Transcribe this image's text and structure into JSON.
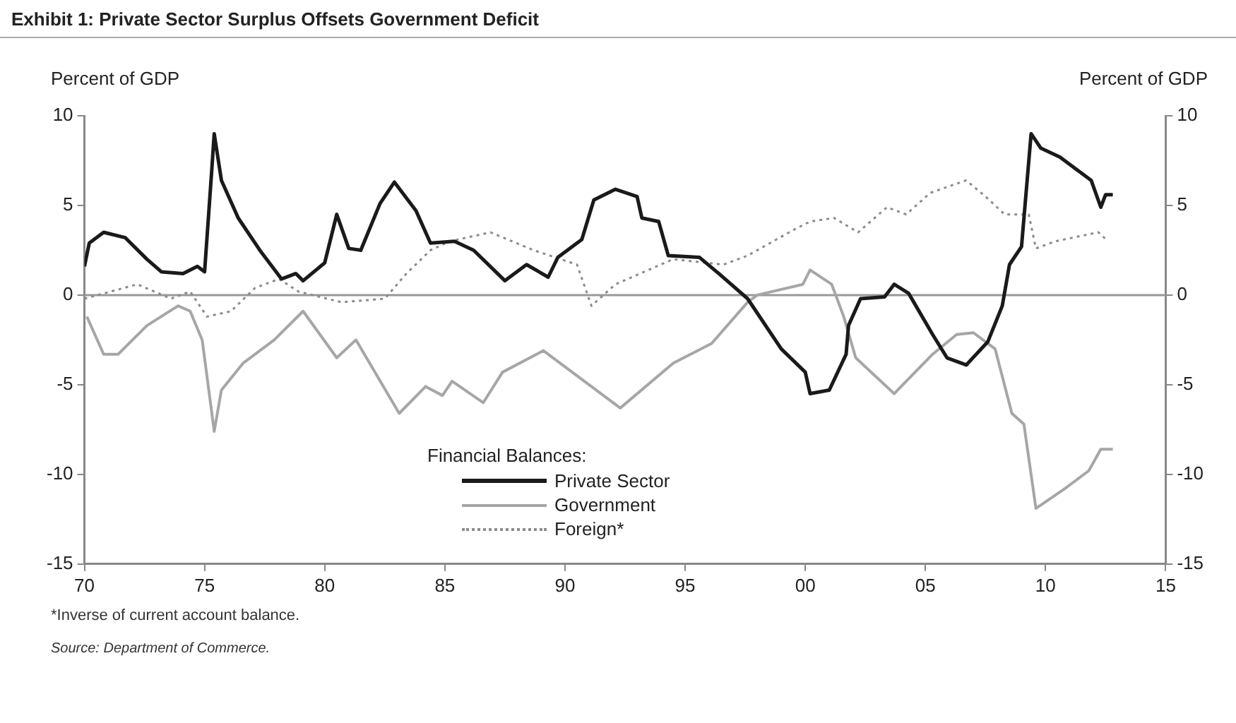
{
  "chart_data": {
    "type": "line",
    "title": "Exhibit 1: Private Sector Surplus Offsets Government Deficit",
    "ylabel": "Percent of GDP",
    "y2label": "Percent of GDP",
    "legend_title": "Financial Balances:",
    "legend": "bottom",
    "grid": false,
    "marker": "none",
    "xlim": [
      1970,
      2015
    ],
    "xticks": [
      {
        "value": 1970,
        "label": "70"
      },
      {
        "value": 1975,
        "label": "75"
      },
      {
        "value": 1980,
        "label": "80"
      },
      {
        "value": 1985,
        "label": "85"
      },
      {
        "value": 1990,
        "label": "90"
      },
      {
        "value": 1995,
        "label": "95"
      },
      {
        "value": 2000,
        "label": "00"
      },
      {
        "value": 2005,
        "label": "05"
      },
      {
        "value": 2010,
        "label": "10"
      },
      {
        "value": 2015,
        "label": "15"
      }
    ],
    "ylim": [
      -15,
      10
    ],
    "yticks": [
      -15,
      -10,
      -5,
      0,
      5,
      10
    ],
    "y2lim": [
      -15,
      10
    ],
    "y2ticks": [
      -15,
      -10,
      -5,
      0,
      5,
      10
    ],
    "ref_lines": [
      {
        "axis": "y",
        "value": 0,
        "color": "#999999"
      }
    ],
    "annotations": [
      "*Inverse of current account balance.",
      "Source: Department of Commerce."
    ],
    "series": [
      {
        "name": "Private Sector",
        "color": "#1a1a1a",
        "line_style": "solid",
        "x": [
          1970.0,
          1970.2,
          1970.8,
          1971.7,
          1972.6,
          1973.2,
          1974.1,
          1974.7,
          1975.0,
          1975.3,
          1975.4,
          1975.7,
          1976.4,
          1977.3,
          1978.2,
          1978.8,
          1979.1,
          1980.0,
          1980.5,
          1981.0,
          1981.5,
          1982.3,
          1982.9,
          1983.8,
          1984.4,
          1985.4,
          1986.2,
          1987.5,
          1988.4,
          1989.3,
          1989.7,
          1990.7,
          1991.2,
          1992.1,
          1993.0,
          1993.2,
          1993.9,
          1994.3,
          1995.6,
          1996.4,
          1997.6,
          1999.0,
          2000.0,
          2000.2,
          2001.0,
          2001.7,
          2001.8,
          2002.3,
          2003.3,
          2003.7,
          2004.3,
          2005.3,
          2005.9,
          2006.7,
          2007.6,
          2008.2,
          2008.5,
          2009.0,
          2009.4,
          2009.8,
          2010.6,
          2011.4,
          2011.9,
          2012.3,
          2012.5,
          2012.8
        ],
        "values": [
          1.6,
          2.9,
          3.5,
          3.2,
          2.0,
          1.3,
          1.2,
          1.6,
          1.3,
          7.0,
          9.0,
          6.4,
          4.3,
          2.5,
          0.9,
          1.2,
          0.8,
          1.8,
          4.5,
          2.6,
          2.5,
          5.1,
          6.3,
          4.7,
          2.9,
          3.0,
          2.5,
          0.8,
          1.7,
          1.0,
          2.1,
          3.1,
          5.3,
          5.9,
          5.5,
          4.3,
          4.1,
          2.2,
          2.1,
          1.2,
          -0.2,
          -3.0,
          -4.3,
          -5.5,
          -5.3,
          -3.3,
          -1.7,
          -0.2,
          -0.1,
          0.6,
          0.1,
          -2.2,
          -3.5,
          -3.9,
          -2.6,
          -0.6,
          1.7,
          2.7,
          9.0,
          8.2,
          7.7,
          6.9,
          6.4,
          4.9,
          5.6,
          5.6
        ]
      },
      {
        "name": "Government",
        "color": "#a6a6a6",
        "line_style": "solid",
        "x": [
          1970.1,
          1970.8,
          1971.4,
          1972.6,
          1973.9,
          1974.4,
          1974.9,
          1975.4,
          1975.7,
          1976.6,
          1977.9,
          1979.1,
          1980.5,
          1981.3,
          1983.1,
          1984.2,
          1984.9,
          1985.3,
          1986.6,
          1987.4,
          1989.1,
          1990.3,
          1992.3,
          1994.5,
          1996.1,
          1997.6,
          1998.0,
          1999.9,
          2000.2,
          2001.1,
          2001.6,
          2002.1,
          2003.7,
          2005.3,
          2006.3,
          2007.0,
          2007.9,
          2008.6,
          2009.1,
          2009.6,
          2010.8,
          2011.8,
          2012.3,
          2012.8
        ],
        "values": [
          -1.2,
          -3.3,
          -3.3,
          -1.7,
          -0.6,
          -0.9,
          -2.5,
          -7.6,
          -5.3,
          -3.8,
          -2.5,
          -0.9,
          -3.5,
          -2.5,
          -6.6,
          -5.1,
          -5.6,
          -4.8,
          -6.0,
          -4.3,
          -3.1,
          -4.3,
          -6.3,
          -3.8,
          -2.7,
          -0.4,
          0,
          0.6,
          1.4,
          0.6,
          -1.2,
          -3.5,
          -5.5,
          -3.3,
          -2.2,
          -2.1,
          -3.0,
          -6.6,
          -7.2,
          -11.9,
          -10.8,
          -9.8,
          -8.6,
          -8.6
        ]
      },
      {
        "name": "Foreign*",
        "color": "#8c8c8c",
        "line_style": "dotted",
        "x": [
          1970.0,
          1972.2,
          1973.6,
          1974.4,
          1975.1,
          1976.1,
          1977.1,
          1978.1,
          1978.9,
          1980.7,
          1982.5,
          1983.4,
          1984.4,
          1985.2,
          1986.9,
          1988.7,
          1990.5,
          1991.1,
          1992.1,
          1994.5,
          1996.6,
          1997.6,
          1999.6,
          2000.2,
          2001.2,
          2002.2,
          2003.4,
          2004.2,
          2005.2,
          2006.7,
          2007.5,
          2008.3,
          2009.3,
          2009.6,
          2010.4,
          2012.2,
          2012.6
        ],
        "values": [
          -0.2,
          0.6,
          -0.2,
          0.2,
          -1.2,
          -0.9,
          0.4,
          0.9,
          0.2,
          -0.4,
          -0.2,
          1.2,
          2.5,
          3.0,
          3.5,
          2.5,
          1.7,
          -0.6,
          0.6,
          2.0,
          1.7,
          2.2,
          3.7,
          4.1,
          4.3,
          3.5,
          4.9,
          4.5,
          5.7,
          6.4,
          5.5,
          4.5,
          4.5,
          2.6,
          3.0,
          3.5,
          3.0
        ]
      }
    ]
  }
}
